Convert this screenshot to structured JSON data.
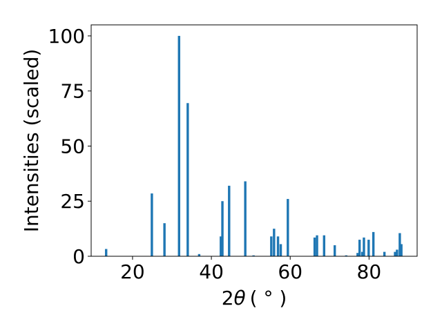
{
  "chart_data": {
    "type": "bar",
    "title": "",
    "xlabel_main": "2",
    "xlabel_theta": "θ",
    "xlabel_unit": "( ° )",
    "ylabel": "Intensities (scaled)",
    "xlim": [
      9.5,
      92.2
    ],
    "ylim": [
      0,
      105
    ],
    "x_ticks": [
      20,
      40,
      60,
      80
    ],
    "y_ticks": [
      0,
      25,
      50,
      75,
      100
    ],
    "grid": false,
    "legend": "none",
    "bar_color": "#1f77b4",
    "bar_width": 0.6,
    "x": [
      13.3,
      24.9,
      28.1,
      31.8,
      34.0,
      36.9,
      42.4,
      42.8,
      44.5,
      48.6,
      50.7,
      55.2,
      55.9,
      56.9,
      57.6,
      59.4,
      66.2,
      66.8,
      68.6,
      71.3,
      74.2,
      77.1,
      77.6,
      78.3,
      78.7,
      79.9,
      81.1,
      83.9,
      86.6,
      87.1,
      87.8,
      88.2
    ],
    "values": [
      3.3,
      28.5,
      15.0,
      100.0,
      69.5,
      1.0,
      9.0,
      25.0,
      32.0,
      34.0,
      0.4,
      9.0,
      12.5,
      9.0,
      5.5,
      26.0,
      8.5,
      9.5,
      9.5,
      5.0,
      0.4,
      1.5,
      7.5,
      2.0,
      8.5,
      7.5,
      11.0,
      2.0,
      2.0,
      3.0,
      10.5,
      5.5
    ]
  }
}
